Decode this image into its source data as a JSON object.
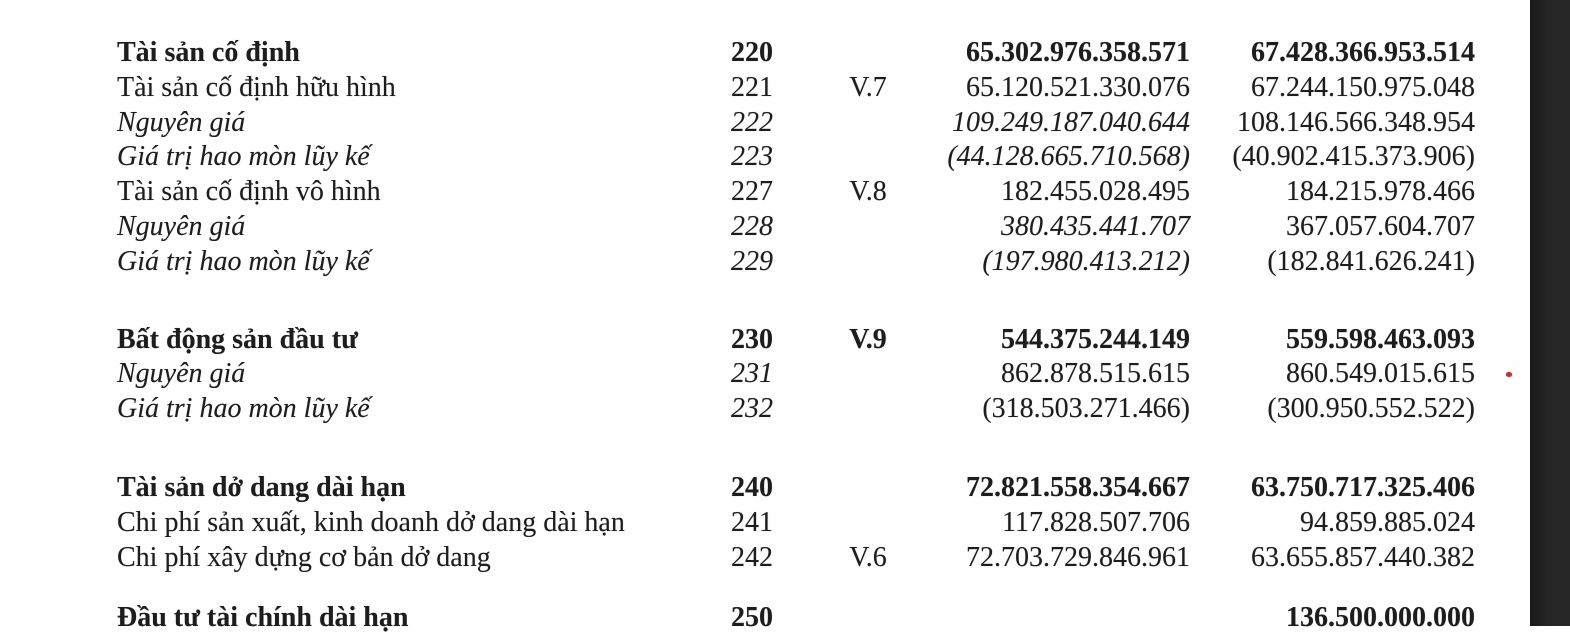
{
  "colors": {
    "scan_bar": "#262626",
    "scan_bar_edge": "#181818",
    "text": "#1d1d1d",
    "speck": "#b43a3a"
  },
  "table": {
    "sections": [
      {
        "rows": [
          {
            "label": "Tài sản cố định",
            "code": "220",
            "note": "",
            "value_current": "65.302.976.358.571",
            "value_previous": "67.428.366.953.514",
            "bold": true,
            "italic": false,
            "val1_italic": false
          },
          {
            "label": "Tài sản cố định hữu hình",
            "code": "221",
            "note": "V.7",
            "value_current": "65.120.521.330.076",
            "value_previous": "67.244.150.975.048",
            "bold": false,
            "italic": false,
            "val1_italic": false
          },
          {
            "label": "Nguyên giá",
            "code": "222",
            "note": "",
            "value_current": "109.249.187.040.644",
            "value_previous": "108.146.566.348.954",
            "bold": false,
            "italic": true,
            "val1_italic": true
          },
          {
            "label": "Giá trị hao mòn lũy kế",
            "code": "223",
            "note": "",
            "value_current": "(44.128.665.710.568)",
            "value_previous": "(40.902.415.373.906)",
            "bold": false,
            "italic": true,
            "val1_italic": true
          },
          {
            "label": "Tài sản cố định vô hình",
            "code": "227",
            "note": "V.8",
            "value_current": "182.455.028.495",
            "value_previous": "184.215.978.466",
            "bold": false,
            "italic": false,
            "val1_italic": false
          },
          {
            "label": "Nguyên giá",
            "code": "228",
            "note": "",
            "value_current": "380.435.441.707",
            "value_previous": "367.057.604.707",
            "bold": false,
            "italic": true,
            "val1_italic": true
          },
          {
            "label": "Giá trị hao mòn lũy kế",
            "code": "229",
            "note": "",
            "value_current": "(197.980.413.212)",
            "value_previous": "(182.841.626.241)",
            "bold": false,
            "italic": true,
            "val1_italic": true
          }
        ]
      },
      {
        "rows": [
          {
            "label": "Bất động sản đầu tư",
            "code": "230",
            "note": "V.9",
            "value_current": "544.375.244.149",
            "value_previous": "559.598.463.093",
            "bold": true,
            "italic": false,
            "val1_italic": false
          },
          {
            "label": "Nguyên giá",
            "code": "231",
            "note": "",
            "value_current": "862.878.515.615",
            "value_previous": "860.549.015.615",
            "bold": false,
            "italic": true,
            "val1_italic": false
          },
          {
            "label": "Giá trị hao mòn lũy kế",
            "code": "232",
            "note": "",
            "value_current": "(318.503.271.466)",
            "value_previous": "(300.950.552.522)",
            "bold": false,
            "italic": true,
            "val1_italic": false
          }
        ]
      },
      {
        "rows": [
          {
            "label": "Tài sản dở dang dài hạn",
            "code": "240",
            "note": "",
            "value_current": "72.821.558.354.667",
            "value_previous": "63.750.717.325.406",
            "bold": true,
            "italic": false,
            "val1_italic": false
          },
          {
            "label": "Chi phí sản xuất, kinh doanh dở dang dài hạn",
            "code": "241",
            "note": "",
            "value_current": "117.828.507.706",
            "value_previous": "94.859.885.024",
            "bold": false,
            "italic": false,
            "val1_italic": false
          },
          {
            "label": "Chi phí xây dựng cơ bản dở dang",
            "code": "242",
            "note": "V.6",
            "value_current": "72.703.729.846.961",
            "value_previous": "63.655.857.440.382",
            "bold": false,
            "italic": false,
            "val1_italic": false
          }
        ]
      },
      {
        "rows": [
          {
            "label": "Đầu tư tài chính dài hạn",
            "code": "250",
            "note": "",
            "value_current": "",
            "value_previous": "136.500.000.000",
            "bold": true,
            "italic": false,
            "val1_italic": false
          }
        ]
      }
    ]
  }
}
